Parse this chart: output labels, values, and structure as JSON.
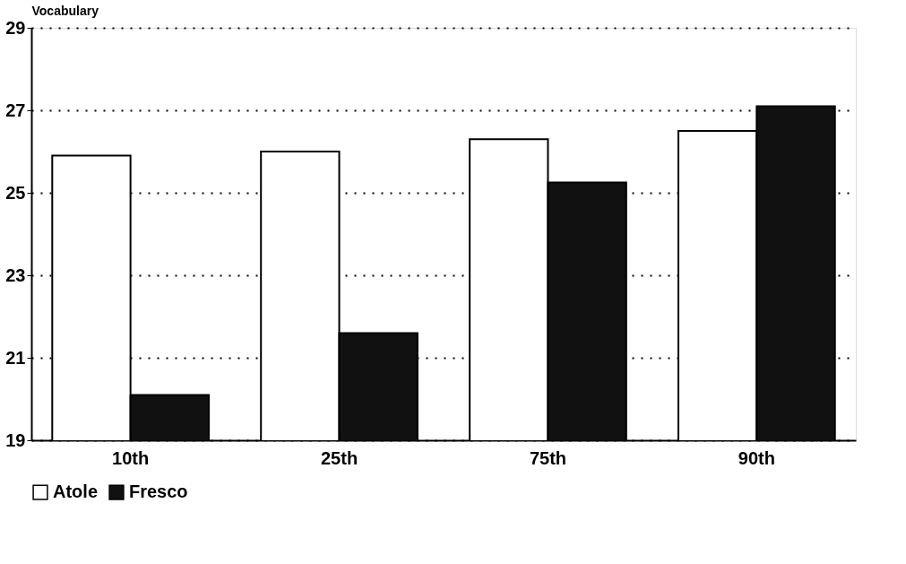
{
  "chart_data": {
    "type": "bar",
    "ylabel": "Vocabulary",
    "categories": [
      "10th",
      "25th",
      "75th",
      "90th"
    ],
    "series": [
      {
        "name": "Atole",
        "color": "#ffffff",
        "values": [
          25.9,
          26.0,
          26.3,
          26.5
        ]
      },
      {
        "name": "Fresco",
        "color": "#111111",
        "values": [
          20.1,
          21.6,
          25.25,
          27.1
        ]
      }
    ],
    "ylim": [
      19,
      29
    ],
    "yticks": [
      19,
      21,
      23,
      25,
      27,
      29
    ],
    "grid": "y",
    "legend": "bottom"
  }
}
